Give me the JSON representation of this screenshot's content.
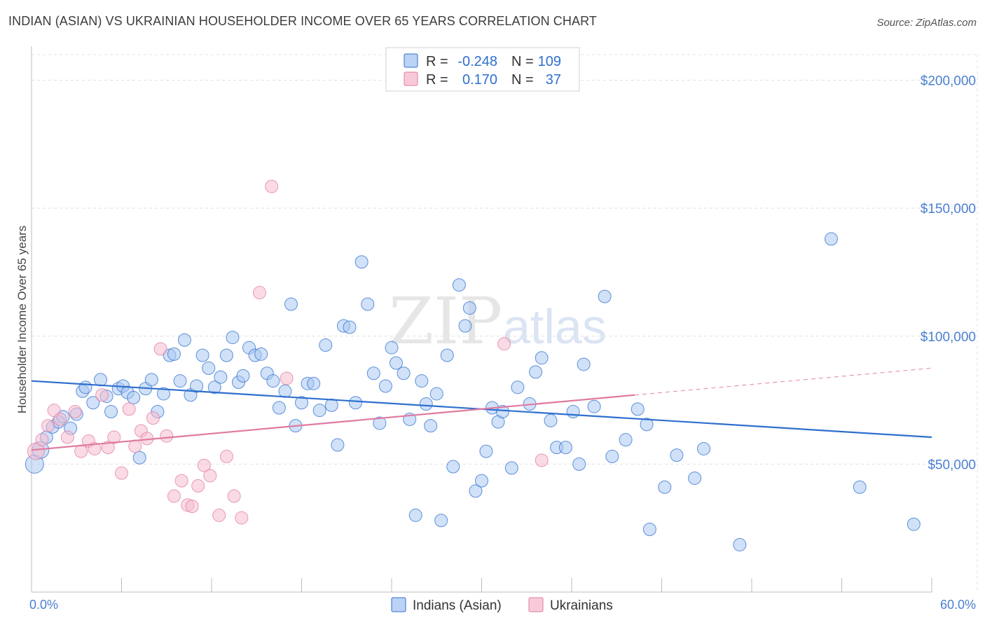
{
  "title": "INDIAN (ASIAN) VS UKRAINIAN HOUSEHOLDER INCOME OVER 65 YEARS CORRELATION CHART",
  "source": "Source: ZipAtlas.com",
  "watermark": {
    "part1": "ZIP",
    "part2": "atlas"
  },
  "colors": {
    "blue": "#2f6fce",
    "blue_fill": "#aac8f2",
    "pink": "#e07aa0",
    "pink_fill": "#f6bdd0",
    "grid": "#e0e0e0"
  },
  "legend": {
    "rows": [
      {
        "r_label": "R =",
        "r_value": "-0.248",
        "n_label": "N =",
        "n_value": "109"
      },
      {
        "r_label": "R =",
        "r_value": "0.170",
        "n_label": "N =",
        "n_value": "37"
      }
    ]
  },
  "bottom_legend": [
    "Indians (Asian)",
    "Ukrainians"
  ],
  "chart_data": {
    "type": "scatter",
    "xlabel": "",
    "ylabel": "Householder Income Over 65 years",
    "xlim": [
      0,
      60
    ],
    "ylim": [
      0,
      210000
    ],
    "x_tick_labels": [
      "0.0%",
      "60.0%"
    ],
    "y_ticks": [
      50000,
      100000,
      150000,
      200000
    ],
    "y_tick_labels": [
      "$50,000",
      "$100,000",
      "$150,000",
      "$200,000"
    ],
    "grid": true,
    "legend_position": "top-center",
    "series": [
      {
        "name": "Indians (Asian)",
        "points": [
          [
            0.2,
            50000
          ],
          [
            0.6,
            55500
          ],
          [
            1.0,
            60500
          ],
          [
            1.4,
            64500
          ],
          [
            1.8,
            66500
          ],
          [
            2.1,
            68500
          ],
          [
            2.6,
            64000
          ],
          [
            3.0,
            69500
          ],
          [
            3.4,
            78500
          ],
          [
            3.6,
            80000
          ],
          [
            4.1,
            74000
          ],
          [
            4.6,
            83000
          ],
          [
            5.0,
            76500
          ],
          [
            5.3,
            70500
          ],
          [
            5.8,
            79500
          ],
          [
            6.1,
            80500
          ],
          [
            6.4,
            78000
          ],
          [
            6.8,
            76000
          ],
          [
            7.2,
            52500
          ],
          [
            7.6,
            79500
          ],
          [
            8.0,
            83000
          ],
          [
            8.4,
            70500
          ],
          [
            8.8,
            77500
          ],
          [
            9.2,
            92500
          ],
          [
            9.5,
            93000
          ],
          [
            9.9,
            82500
          ],
          [
            10.2,
            98500
          ],
          [
            10.6,
            77000
          ],
          [
            11.0,
            80500
          ],
          [
            11.4,
            92500
          ],
          [
            11.8,
            87500
          ],
          [
            12.2,
            80000
          ],
          [
            12.6,
            84000
          ],
          [
            13.0,
            92500
          ],
          [
            13.4,
            99500
          ],
          [
            13.8,
            82000
          ],
          [
            14.1,
            84500
          ],
          [
            14.5,
            95500
          ],
          [
            14.9,
            92500
          ],
          [
            15.3,
            93000
          ],
          [
            15.7,
            85500
          ],
          [
            16.1,
            82500
          ],
          [
            16.5,
            72000
          ],
          [
            16.9,
            78500
          ],
          [
            17.3,
            112500
          ],
          [
            17.6,
            65000
          ],
          [
            18.0,
            74000
          ],
          [
            18.4,
            81500
          ],
          [
            18.8,
            81500
          ],
          [
            19.2,
            71000
          ],
          [
            19.6,
            96500
          ],
          [
            20.0,
            73000
          ],
          [
            20.4,
            57500
          ],
          [
            20.8,
            104000
          ],
          [
            21.2,
            103500
          ],
          [
            21.6,
            74000
          ],
          [
            22.0,
            129000
          ],
          [
            22.4,
            112500
          ],
          [
            22.8,
            85500
          ],
          [
            23.2,
            66000
          ],
          [
            23.6,
            80500
          ],
          [
            24.0,
            95500
          ],
          [
            24.3,
            89500
          ],
          [
            24.8,
            85500
          ],
          [
            25.2,
            67500
          ],
          [
            25.6,
            30000
          ],
          [
            26.0,
            82500
          ],
          [
            26.3,
            73500
          ],
          [
            26.6,
            65000
          ],
          [
            27.0,
            77500
          ],
          [
            27.3,
            28000
          ],
          [
            27.7,
            92500
          ],
          [
            28.1,
            49000
          ],
          [
            28.5,
            120000
          ],
          [
            28.9,
            104000
          ],
          [
            29.2,
            111000
          ],
          [
            29.6,
            39500
          ],
          [
            30.0,
            43500
          ],
          [
            30.3,
            55000
          ],
          [
            30.7,
            72000
          ],
          [
            31.1,
            66500
          ],
          [
            31.4,
            70500
          ],
          [
            32.0,
            48500
          ],
          [
            32.4,
            80000
          ],
          [
            33.2,
            73500
          ],
          [
            33.6,
            86000
          ],
          [
            34.0,
            91500
          ],
          [
            34.6,
            67000
          ],
          [
            35.0,
            56500
          ],
          [
            35.6,
            56500
          ],
          [
            36.1,
            70500
          ],
          [
            36.5,
            50000
          ],
          [
            36.8,
            89000
          ],
          [
            37.5,
            72500
          ],
          [
            38.2,
            115500
          ],
          [
            38.7,
            53000
          ],
          [
            39.6,
            59500
          ],
          [
            40.4,
            71500
          ],
          [
            41.0,
            65500
          ],
          [
            41.2,
            24500
          ],
          [
            42.2,
            41000
          ],
          [
            43.0,
            53500
          ],
          [
            44.2,
            44500
          ],
          [
            44.8,
            56000
          ],
          [
            47.2,
            18500
          ],
          [
            53.3,
            138000
          ],
          [
            55.2,
            41000
          ],
          [
            58.8,
            26500
          ]
        ]
      },
      {
        "name": "Ukrainians",
        "points": [
          [
            0.3,
            55000
          ],
          [
            0.7,
            59500
          ],
          [
            1.1,
            65000
          ],
          [
            1.5,
            71000
          ],
          [
            1.9,
            67500
          ],
          [
            2.4,
            60500
          ],
          [
            2.9,
            70500
          ],
          [
            3.3,
            55000
          ],
          [
            3.8,
            59000
          ],
          [
            4.2,
            56000
          ],
          [
            4.7,
            77000
          ],
          [
            5.1,
            56500
          ],
          [
            5.5,
            60500
          ],
          [
            6.0,
            46500
          ],
          [
            6.5,
            71500
          ],
          [
            6.9,
            57000
          ],
          [
            7.3,
            63000
          ],
          [
            7.7,
            60000
          ],
          [
            8.1,
            68000
          ],
          [
            8.6,
            95000
          ],
          [
            9.0,
            61000
          ],
          [
            9.5,
            37500
          ],
          [
            10.0,
            43500
          ],
          [
            10.4,
            34000
          ],
          [
            10.7,
            33500
          ],
          [
            11.1,
            41500
          ],
          [
            11.5,
            49500
          ],
          [
            11.9,
            45500
          ],
          [
            12.5,
            30000
          ],
          [
            13.0,
            53000
          ],
          [
            13.5,
            37500
          ],
          [
            14.0,
            29000
          ],
          [
            15.2,
            117000
          ],
          [
            16.0,
            158500
          ],
          [
            17.0,
            83500
          ],
          [
            31.5,
            97000
          ],
          [
            34.0,
            51500
          ]
        ]
      }
    ],
    "trend_lines": [
      {
        "series": "Indians (Asian)",
        "x": [
          0,
          60
        ],
        "y": [
          82500,
          60500
        ]
      },
      {
        "series": "Ukrainians",
        "x": [
          0,
          40.2
        ],
        "y": [
          55500,
          77000
        ],
        "dashed_extension": {
          "x": [
            40.2,
            60
          ],
          "y": [
            77000,
            87500
          ]
        }
      }
    ]
  }
}
